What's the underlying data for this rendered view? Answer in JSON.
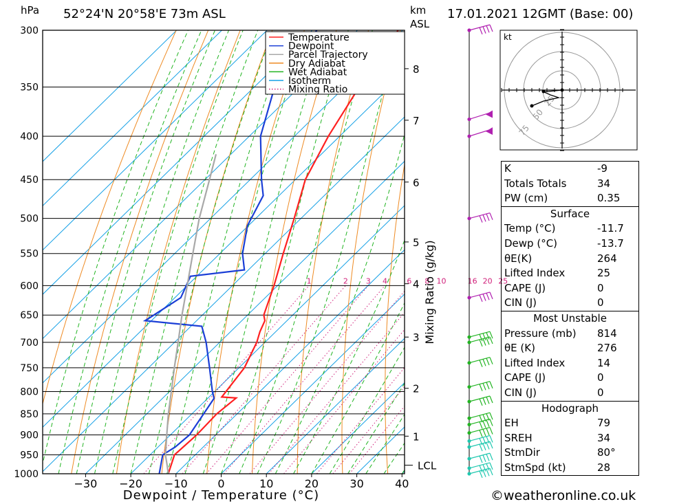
{
  "header": {
    "hpa": "hPa",
    "location": "52°24'N  20°58'E  73m  ASL",
    "km": "km",
    "asl": "ASL",
    "datetime": "17.01.2021  12GMT  (Base: 00)"
  },
  "legend": [
    "Temperature",
    "Dewpoint",
    "Parcel Trajectory",
    "Dry Adiabat",
    "Wet Adiabat",
    "Isotherm",
    "Mixing Ratio"
  ],
  "colors": {
    "temperature": "#ff2020",
    "dewpoint": "#1a3ed6",
    "parcel": "#a8a8a8",
    "dry_adiabat": "#ee8a22",
    "wet_adiabat": "#22b422",
    "isotherm": "#14a0e6",
    "mixing_ratio": "#d0207a",
    "wind": "#b020b0"
  },
  "chart_data": {
    "type": "line",
    "title": "",
    "xlabel": "Dewpoint / Temperature (°C)",
    "ylabel": "hPa",
    "y2label": "Mixing Ratio (g/kg)",
    "xticks": [
      -30,
      -20,
      -10,
      0,
      10,
      20,
      30,
      40
    ],
    "pressure_levels": [
      300,
      350,
      400,
      450,
      500,
      550,
      600,
      650,
      700,
      750,
      800,
      850,
      900,
      950,
      1000
    ],
    "height_km_ticks": [
      {
        "label": "1",
        "p": 903
      },
      {
        "label": "2",
        "p": 793
      },
      {
        "label": "3",
        "p": 690
      },
      {
        "label": "4",
        "p": 597
      },
      {
        "label": "5",
        "p": 533
      },
      {
        "label": "6",
        "p": 453
      },
      {
        "label": "7",
        "p": 383
      },
      {
        "label": "8",
        "p": 333
      }
    ],
    "lcl": {
      "label": "LCL",
      "p": 977
    },
    "mixing_ratio_labels": [
      "1",
      "2",
      "3",
      "4",
      "6",
      "8",
      "10",
      "16",
      "20",
      "25"
    ],
    "mixing_ratio_values": [
      1,
      2,
      3,
      4,
      6,
      8,
      10,
      16,
      20,
      25
    ],
    "series": [
      {
        "name": "Temperature",
        "points": [
          [
            1000,
            -11.7
          ],
          [
            950,
            -14.6
          ],
          [
            900,
            -14.2
          ],
          [
            850,
            -14.5
          ],
          [
            814,
            -13.8
          ],
          [
            812,
            -17.2
          ],
          [
            750,
            -18.8
          ],
          [
            700,
            -21.8
          ],
          [
            680,
            -23.5
          ],
          [
            660,
            -24.9
          ],
          [
            650,
            -26.4
          ],
          [
            600,
            -30.8
          ],
          [
            550,
            -36.0
          ],
          [
            500,
            -41.5
          ],
          [
            450,
            -47.8
          ],
          [
            400,
            -52.5
          ],
          [
            350,
            -56.8
          ],
          [
            300,
            -61.0
          ]
        ]
      },
      {
        "name": "Dewpoint",
        "points": [
          [
            1000,
            -13.7
          ],
          [
            950,
            -17.2
          ],
          [
            930,
            -16.2
          ],
          [
            900,
            -15.8
          ],
          [
            850,
            -17.4
          ],
          [
            815,
            -18.6
          ],
          [
            800,
            -20.5
          ],
          [
            750,
            -26.5
          ],
          [
            700,
            -33.0
          ],
          [
            670,
            -37.6
          ],
          [
            660,
            -51.4
          ],
          [
            620,
            -48.7
          ],
          [
            585,
            -51.4
          ],
          [
            575,
            -40.9
          ],
          [
            550,
            -45.0
          ],
          [
            510,
            -50.2
          ],
          [
            470,
            -53.5
          ],
          [
            450,
            -57.5
          ],
          [
            400,
            -67.5
          ],
          [
            350,
            -75.5
          ],
          [
            300,
            -79.0
          ]
        ]
      },
      {
        "name": "Parcel Trajectory",
        "points": [
          [
            1000,
            -11.7
          ],
          [
            977,
            -13.9
          ],
          [
            950,
            -16.6
          ],
          [
            900,
            -20.8
          ],
          [
            850,
            -25.2
          ],
          [
            800,
            -29.6
          ],
          [
            750,
            -34.3
          ],
          [
            700,
            -39.2
          ],
          [
            650,
            -44.5
          ],
          [
            600,
            -50.0
          ],
          [
            550,
            -56.0
          ],
          [
            500,
            -62.5
          ],
          [
            450,
            -69.0
          ],
          [
            420,
            -73.3
          ]
        ]
      }
    ],
    "hodograph": {
      "unit": "kt",
      "ring_labels": [
        "25",
        "50",
        "75"
      ]
    },
    "winds": [
      {
        "p": 300,
        "style": "flags"
      },
      {
        "p": 382,
        "style": "pennant"
      },
      {
        "p": 400,
        "style": "pennant"
      },
      {
        "p": 500,
        "style": "flags"
      },
      {
        "p": 620,
        "style": "flags"
      },
      {
        "p": 690,
        "style": "flags"
      },
      {
        "p": 700,
        "style": "flags"
      },
      {
        "p": 740,
        "style": "flags"
      },
      {
        "p": 790,
        "style": "flags"
      },
      {
        "p": 822,
        "style": "flags"
      },
      {
        "p": 860,
        "style": "flags"
      },
      {
        "p": 875,
        "style": "flags"
      },
      {
        "p": 895,
        "style": "flags"
      },
      {
        "p": 915,
        "style": "flags"
      },
      {
        "p": 930,
        "style": "flags"
      },
      {
        "p": 960,
        "style": "flags"
      },
      {
        "p": 985,
        "style": "flags"
      },
      {
        "p": 1000,
        "style": "flags"
      }
    ]
  },
  "indices": [
    {
      "label": "K",
      "value": "-9"
    },
    {
      "label": "Totals Totals",
      "value": "34"
    },
    {
      "label": "PW (cm)",
      "value": "0.35"
    }
  ],
  "surface": {
    "title": "Surface",
    "rows": [
      {
        "label": "Temp (°C)",
        "value": "-11.7"
      },
      {
        "label": "Dewp (°C)",
        "value": "-13.7"
      },
      {
        "label": "θE(K)",
        "value": "264"
      },
      {
        "label": "Lifted Index",
        "value": "25"
      },
      {
        "label": "CAPE (J)",
        "value": "0"
      },
      {
        "label": "CIN (J)",
        "value": "0"
      }
    ]
  },
  "most_unstable": {
    "title": "Most Unstable",
    "rows": [
      {
        "label": "Pressure (mb)",
        "value": "814"
      },
      {
        "label": "θE (K)",
        "value": "276"
      },
      {
        "label": "Lifted Index",
        "value": "14"
      },
      {
        "label": "CAPE (J)",
        "value": "0"
      },
      {
        "label": "CIN (J)",
        "value": "0"
      }
    ]
  },
  "hodograph_stats": {
    "title": "Hodograph",
    "rows": [
      {
        "label": "EH",
        "value": "79"
      },
      {
        "label": "SREH",
        "value": "34"
      },
      {
        "label": "StmDir",
        "value": "80°"
      },
      {
        "label": "StmSpd (kt)",
        "value": "28"
      }
    ]
  },
  "footer": "©weatheronline.co.uk"
}
